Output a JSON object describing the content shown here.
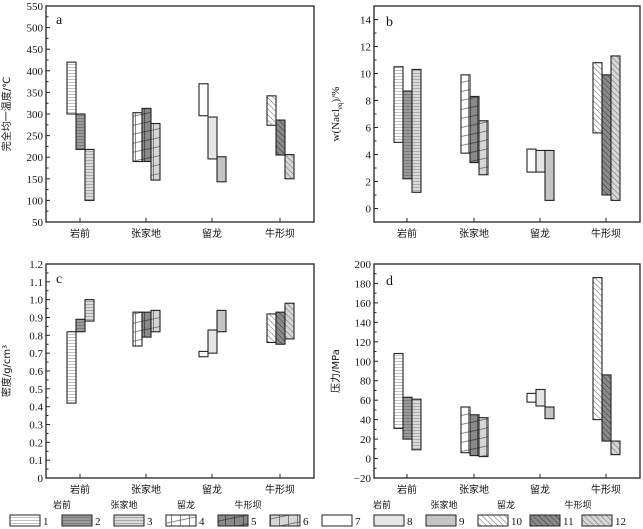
{
  "figure_title": "",
  "legend": {
    "groups": [
      "岩前",
      "张家地",
      "留龙",
      "牛形坝",
      "岩前",
      "张家地",
      "留龙",
      "牛形坝"
    ],
    "items": [
      {
        "id": "1",
        "pattern": "hlines",
        "fill": "#ffffff",
        "stroke": "#999999"
      },
      {
        "id": "2",
        "pattern": "hlines",
        "fill": "#9a9a9a",
        "stroke": "#666666"
      },
      {
        "id": "3",
        "pattern": "hlines",
        "fill": "#dadada",
        "stroke": "#8a8a8a"
      },
      {
        "id": "4",
        "pattern": "grid",
        "fill": "#ffffff",
        "stroke": "#555555"
      },
      {
        "id": "5",
        "pattern": "grid",
        "fill": "#8a8a8a",
        "stroke": "#333333"
      },
      {
        "id": "6",
        "pattern": "grid",
        "fill": "#d6d6d6",
        "stroke": "#555555"
      },
      {
        "id": "7",
        "pattern": "solid",
        "fill": "#ffffff",
        "stroke": "#000000"
      },
      {
        "id": "8",
        "pattern": "solid",
        "fill": "#e6e6e6",
        "stroke": "#000000"
      },
      {
        "id": "9",
        "pattern": "solid",
        "fill": "#c4c4c4",
        "stroke": "#000000"
      },
      {
        "id": "10",
        "pattern": "diag",
        "fill": "#ffffff",
        "stroke": "#666666"
      },
      {
        "id": "11",
        "pattern": "diag",
        "fill": "#8a8a8a",
        "stroke": "#333333"
      },
      {
        "id": "12",
        "pattern": "diag",
        "fill": "#d6d6d6",
        "stroke": "#666666"
      }
    ]
  },
  "chart_data": [
    {
      "panel": "a",
      "type": "floating-bar",
      "ylabel": "完全均一温度/℃",
      "ylim": [
        50,
        550
      ],
      "yticks": [
        50,
        100,
        150,
        200,
        250,
        300,
        350,
        400,
        450,
        500,
        550
      ],
      "categories": [
        "岩前",
        "张家地",
        "留龙",
        "牛形坝"
      ],
      "bars": [
        {
          "category": "岩前",
          "slot": 0,
          "legend": "1",
          "low": 300,
          "high": 420
        },
        {
          "category": "岩前",
          "slot": 1,
          "legend": "2",
          "low": 218,
          "high": 300
        },
        {
          "category": "岩前",
          "slot": 2,
          "legend": "3",
          "low": 100,
          "high": 218
        },
        {
          "category": "张家地",
          "slot": 0,
          "legend": "4",
          "low": 190,
          "high": 303
        },
        {
          "category": "张家地",
          "slot": 1,
          "legend": "5",
          "low": 190,
          "high": 313
        },
        {
          "category": "张家地",
          "slot": 2,
          "legend": "6",
          "low": 147,
          "high": 278
        },
        {
          "category": "留龙",
          "slot": 0,
          "legend": "7",
          "low": 296,
          "high": 370
        },
        {
          "category": "留龙",
          "slot": 1,
          "legend": "8",
          "low": 196,
          "high": 293
        },
        {
          "category": "留龙",
          "slot": 2,
          "legend": "9",
          "low": 143,
          "high": 201
        },
        {
          "category": "牛形坝",
          "slot": 0,
          "legend": "10",
          "low": 274,
          "high": 342
        },
        {
          "category": "牛形坝",
          "slot": 1,
          "legend": "11",
          "low": 205,
          "high": 286
        },
        {
          "category": "牛形坝",
          "slot": 2,
          "legend": "12",
          "low": 150,
          "high": 206
        }
      ]
    },
    {
      "panel": "b",
      "type": "floating-bar",
      "ylabel": "w(NaCl_eq)/%",
      "ylabel_main": "w(Nacl",
      "ylabel_sub": "eq",
      "ylabel_tail": ")/%",
      "ylim": [
        -1,
        15
      ],
      "yticks": [
        0,
        2,
        4,
        6,
        8,
        10,
        12,
        14
      ],
      "categories": [
        "岩前",
        "张家地",
        "留龙",
        "牛形坝"
      ],
      "bars": [
        {
          "category": "岩前",
          "slot": 0,
          "legend": "1",
          "low": 4.9,
          "high": 10.5
        },
        {
          "category": "岩前",
          "slot": 1,
          "legend": "2",
          "low": 2.2,
          "high": 8.7
        },
        {
          "category": "岩前",
          "slot": 2,
          "legend": "3",
          "low": 1.2,
          "high": 10.3
        },
        {
          "category": "张家地",
          "slot": 0,
          "legend": "4",
          "low": 4.1,
          "high": 9.9
        },
        {
          "category": "张家地",
          "slot": 1,
          "legend": "5",
          "low": 3.4,
          "high": 8.3
        },
        {
          "category": "张家地",
          "slot": 2,
          "legend": "6",
          "low": 2.5,
          "high": 6.5
        },
        {
          "category": "留龙",
          "slot": 0,
          "legend": "7",
          "low": 2.7,
          "high": 4.4
        },
        {
          "category": "留龙",
          "slot": 1,
          "legend": "8",
          "low": 2.7,
          "high": 4.3
        },
        {
          "category": "留龙",
          "slot": 2,
          "legend": "9",
          "low": 0.6,
          "high": 4.3
        },
        {
          "category": "牛形坝",
          "slot": 0,
          "legend": "10",
          "low": 5.6,
          "high": 10.8
        },
        {
          "category": "牛形坝",
          "slot": 1,
          "legend": "11",
          "low": 1.0,
          "high": 9.9
        },
        {
          "category": "牛形坝",
          "slot": 2,
          "legend": "12",
          "low": 0.6,
          "high": 11.3
        }
      ]
    },
    {
      "panel": "c",
      "type": "floating-bar",
      "ylabel": "密度/g/cm³",
      "ylim": [
        0,
        1.2
      ],
      "yticks": [
        0,
        0.1,
        0.2,
        0.3,
        0.4,
        0.5,
        0.6,
        0.7,
        0.8,
        0.9,
        1.0,
        1.1,
        1.2
      ],
      "yticklabels": [
        "0",
        "0.1",
        "0.2",
        "0.3",
        "0.4",
        "0.5",
        "0.6",
        "0.7",
        "0.8",
        "0.9",
        "1.0",
        "1.1",
        "1.2"
      ],
      "categories": [
        "岩前",
        "张家地",
        "留龙",
        "牛形坝"
      ],
      "bars": [
        {
          "category": "岩前",
          "slot": 0,
          "legend": "1",
          "low": 0.42,
          "high": 0.82
        },
        {
          "category": "岩前",
          "slot": 1,
          "legend": "2",
          "low": 0.82,
          "high": 0.89
        },
        {
          "category": "岩前",
          "slot": 2,
          "legend": "3",
          "low": 0.88,
          "high": 1.0
        },
        {
          "category": "张家地",
          "slot": 0,
          "legend": "4",
          "low": 0.74,
          "high": 0.93
        },
        {
          "category": "张家地",
          "slot": 1,
          "legend": "5",
          "low": 0.79,
          "high": 0.93
        },
        {
          "category": "张家地",
          "slot": 2,
          "legend": "6",
          "low": 0.82,
          "high": 0.94
        },
        {
          "category": "留龙",
          "slot": 0,
          "legend": "7",
          "low": 0.68,
          "high": 0.71
        },
        {
          "category": "留龙",
          "slot": 1,
          "legend": "8",
          "low": 0.7,
          "high": 0.83
        },
        {
          "category": "留龙",
          "slot": 2,
          "legend": "9",
          "low": 0.82,
          "high": 0.94
        },
        {
          "category": "牛形坝",
          "slot": 0,
          "legend": "10",
          "low": 0.76,
          "high": 0.92
        },
        {
          "category": "牛形坝",
          "slot": 1,
          "legend": "11",
          "low": 0.75,
          "high": 0.93
        },
        {
          "category": "牛形坝",
          "slot": 2,
          "legend": "12",
          "low": 0.78,
          "high": 0.98
        }
      ]
    },
    {
      "panel": "d",
      "type": "floating-bar",
      "ylabel": "压力/MPa",
      "ylim": [
        -20,
        200
      ],
      "yticks": [
        -20,
        0,
        20,
        40,
        60,
        80,
        100,
        120,
        140,
        160,
        180,
        200
      ],
      "categories": [
        "岩前",
        "张家地",
        "留龙",
        "牛形坝"
      ],
      "bars": [
        {
          "category": "岩前",
          "slot": 0,
          "legend": "1",
          "low": 31,
          "high": 108
        },
        {
          "category": "岩前",
          "slot": 1,
          "legend": "2",
          "low": 20,
          "high": 63
        },
        {
          "category": "岩前",
          "slot": 2,
          "legend": "3",
          "low": 9,
          "high": 61
        },
        {
          "category": "张家地",
          "slot": 0,
          "legend": "4",
          "low": 6,
          "high": 53
        },
        {
          "category": "张家地",
          "slot": 1,
          "legend": "5",
          "low": 3,
          "high": 45
        },
        {
          "category": "张家地",
          "slot": 2,
          "legend": "6",
          "low": 2,
          "high": 42
        },
        {
          "category": "留龙",
          "slot": 0,
          "legend": "7",
          "low": 58,
          "high": 67
        },
        {
          "category": "留龙",
          "slot": 1,
          "legend": "8",
          "low": 54,
          "high": 71
        },
        {
          "category": "留龙",
          "slot": 2,
          "legend": "9",
          "low": 41,
          "high": 53
        },
        {
          "category": "牛形坝",
          "slot": 0,
          "legend": "10",
          "low": 40,
          "high": 186
        },
        {
          "category": "牛形坝",
          "slot": 1,
          "legend": "11",
          "low": 18,
          "high": 86
        },
        {
          "category": "牛形坝",
          "slot": 2,
          "legend": "12",
          "low": 4,
          "high": 18
        }
      ]
    }
  ]
}
